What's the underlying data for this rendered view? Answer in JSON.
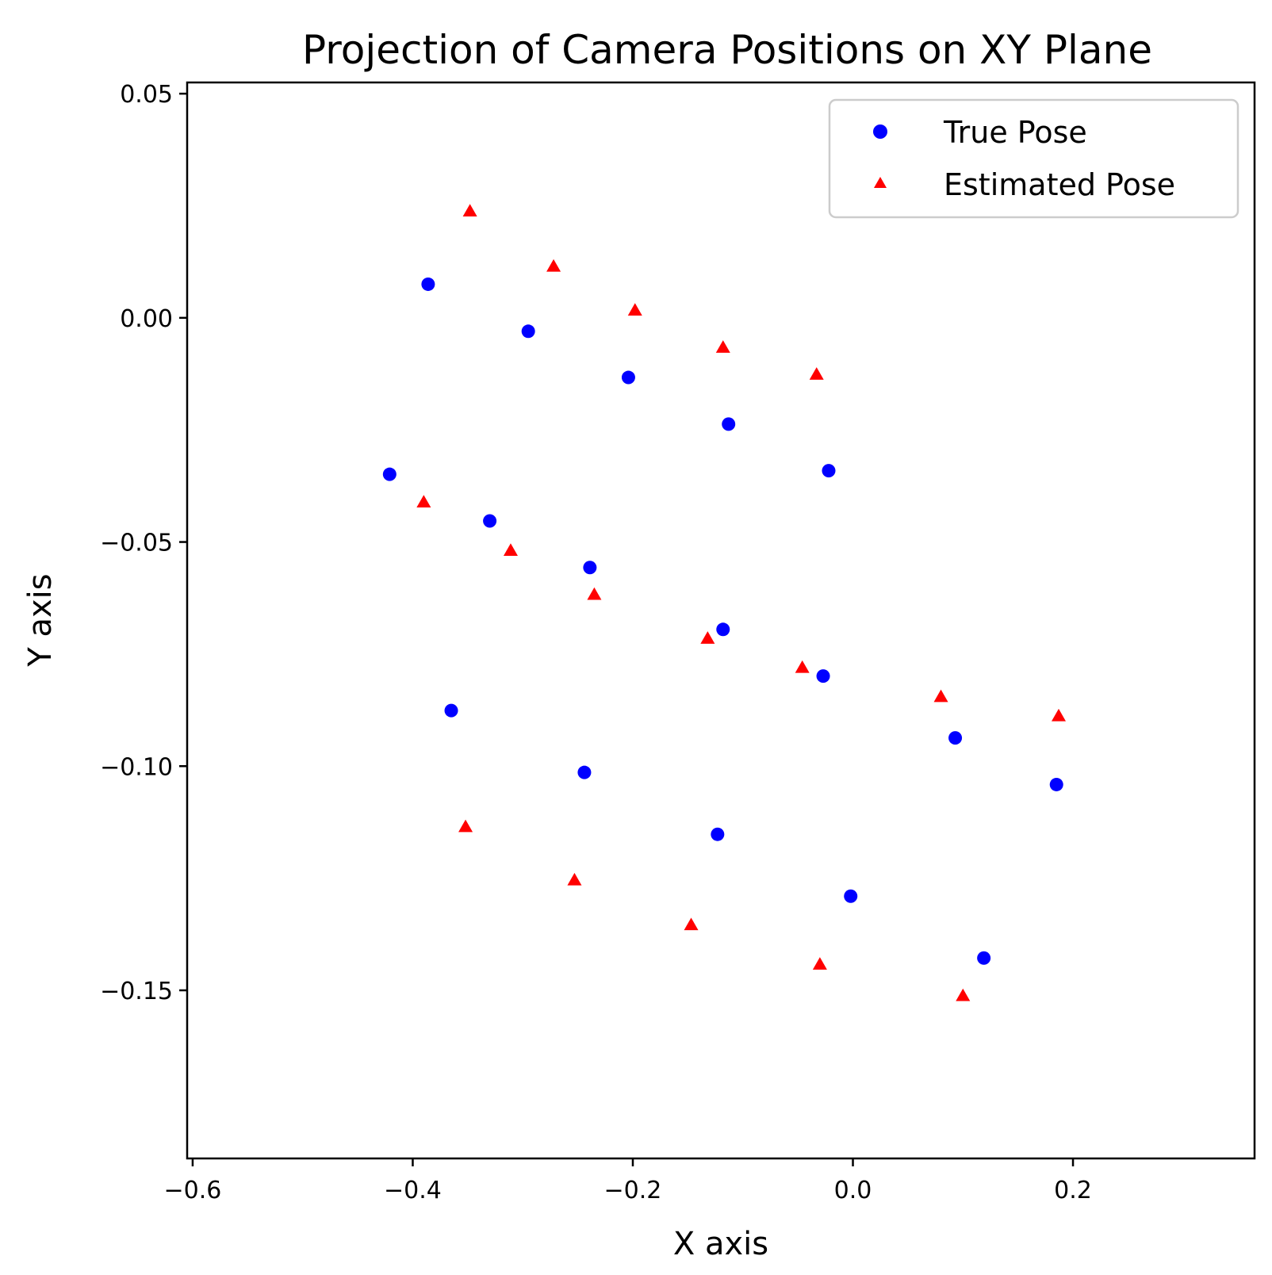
{
  "chart_data": {
    "type": "scatter",
    "title": "Projection of Camera Positions on XY Plane",
    "xlabel": "X axis",
    "ylabel": "Y axis",
    "xlim": [
      -0.605,
      0.365
    ],
    "ylim": [
      -0.1875,
      0.0525
    ],
    "xticks": [
      -0.6,
      -0.4,
      -0.2,
      0.0,
      0.2
    ],
    "xtick_labels": [
      "−0.6",
      "−0.4",
      "−0.2",
      "0.0",
      "0.2"
    ],
    "yticks": [
      0.05,
      0.0,
      -0.05,
      -0.1,
      -0.15
    ],
    "ytick_labels": [
      "0.05",
      "0.00",
      "−0.05",
      "−0.10",
      "−0.15"
    ],
    "grid": false,
    "legend_position": "top-right",
    "series": [
      {
        "name": "True Pose",
        "marker": "circle",
        "color": "#0000ff",
        "points": [
          [
            -0.386,
            0.0075
          ],
          [
            -0.295,
            -0.003
          ],
          [
            -0.204,
            -0.0133
          ],
          [
            -0.113,
            -0.0237
          ],
          [
            -0.022,
            -0.0341
          ],
          [
            -0.421,
            -0.0349
          ],
          [
            -0.33,
            -0.0453
          ],
          [
            -0.239,
            -0.0557
          ],
          [
            -0.118,
            -0.0695
          ],
          [
            -0.027,
            -0.0799
          ],
          [
            -0.365,
            -0.0876
          ],
          [
            -0.244,
            -0.1014
          ],
          [
            0.093,
            -0.0937
          ],
          [
            0.185,
            -0.1041
          ],
          [
            -0.123,
            -0.1152
          ],
          [
            -0.002,
            -0.129
          ],
          [
            0.119,
            -0.1428
          ]
        ]
      },
      {
        "name": "Estimated Pose",
        "marker": "triangle",
        "color": "#ff0000",
        "points": [
          [
            -0.348,
            0.0238
          ],
          [
            -0.272,
            0.0115
          ],
          [
            -0.198,
            0.0017
          ],
          [
            -0.118,
            -0.0066
          ],
          [
            -0.033,
            -0.0126
          ],
          [
            -0.39,
            -0.0411
          ],
          [
            -0.311,
            -0.0519
          ],
          [
            -0.235,
            -0.0617
          ],
          [
            -0.132,
            -0.0715
          ],
          [
            -0.046,
            -0.078
          ],
          [
            0.08,
            -0.0845
          ],
          [
            0.187,
            -0.0888
          ],
          [
            -0.352,
            -0.1135
          ],
          [
            -0.253,
            -0.1254
          ],
          [
            -0.147,
            -0.1354
          ],
          [
            -0.03,
            -0.1442
          ],
          [
            0.1,
            -0.1512
          ]
        ]
      }
    ]
  }
}
